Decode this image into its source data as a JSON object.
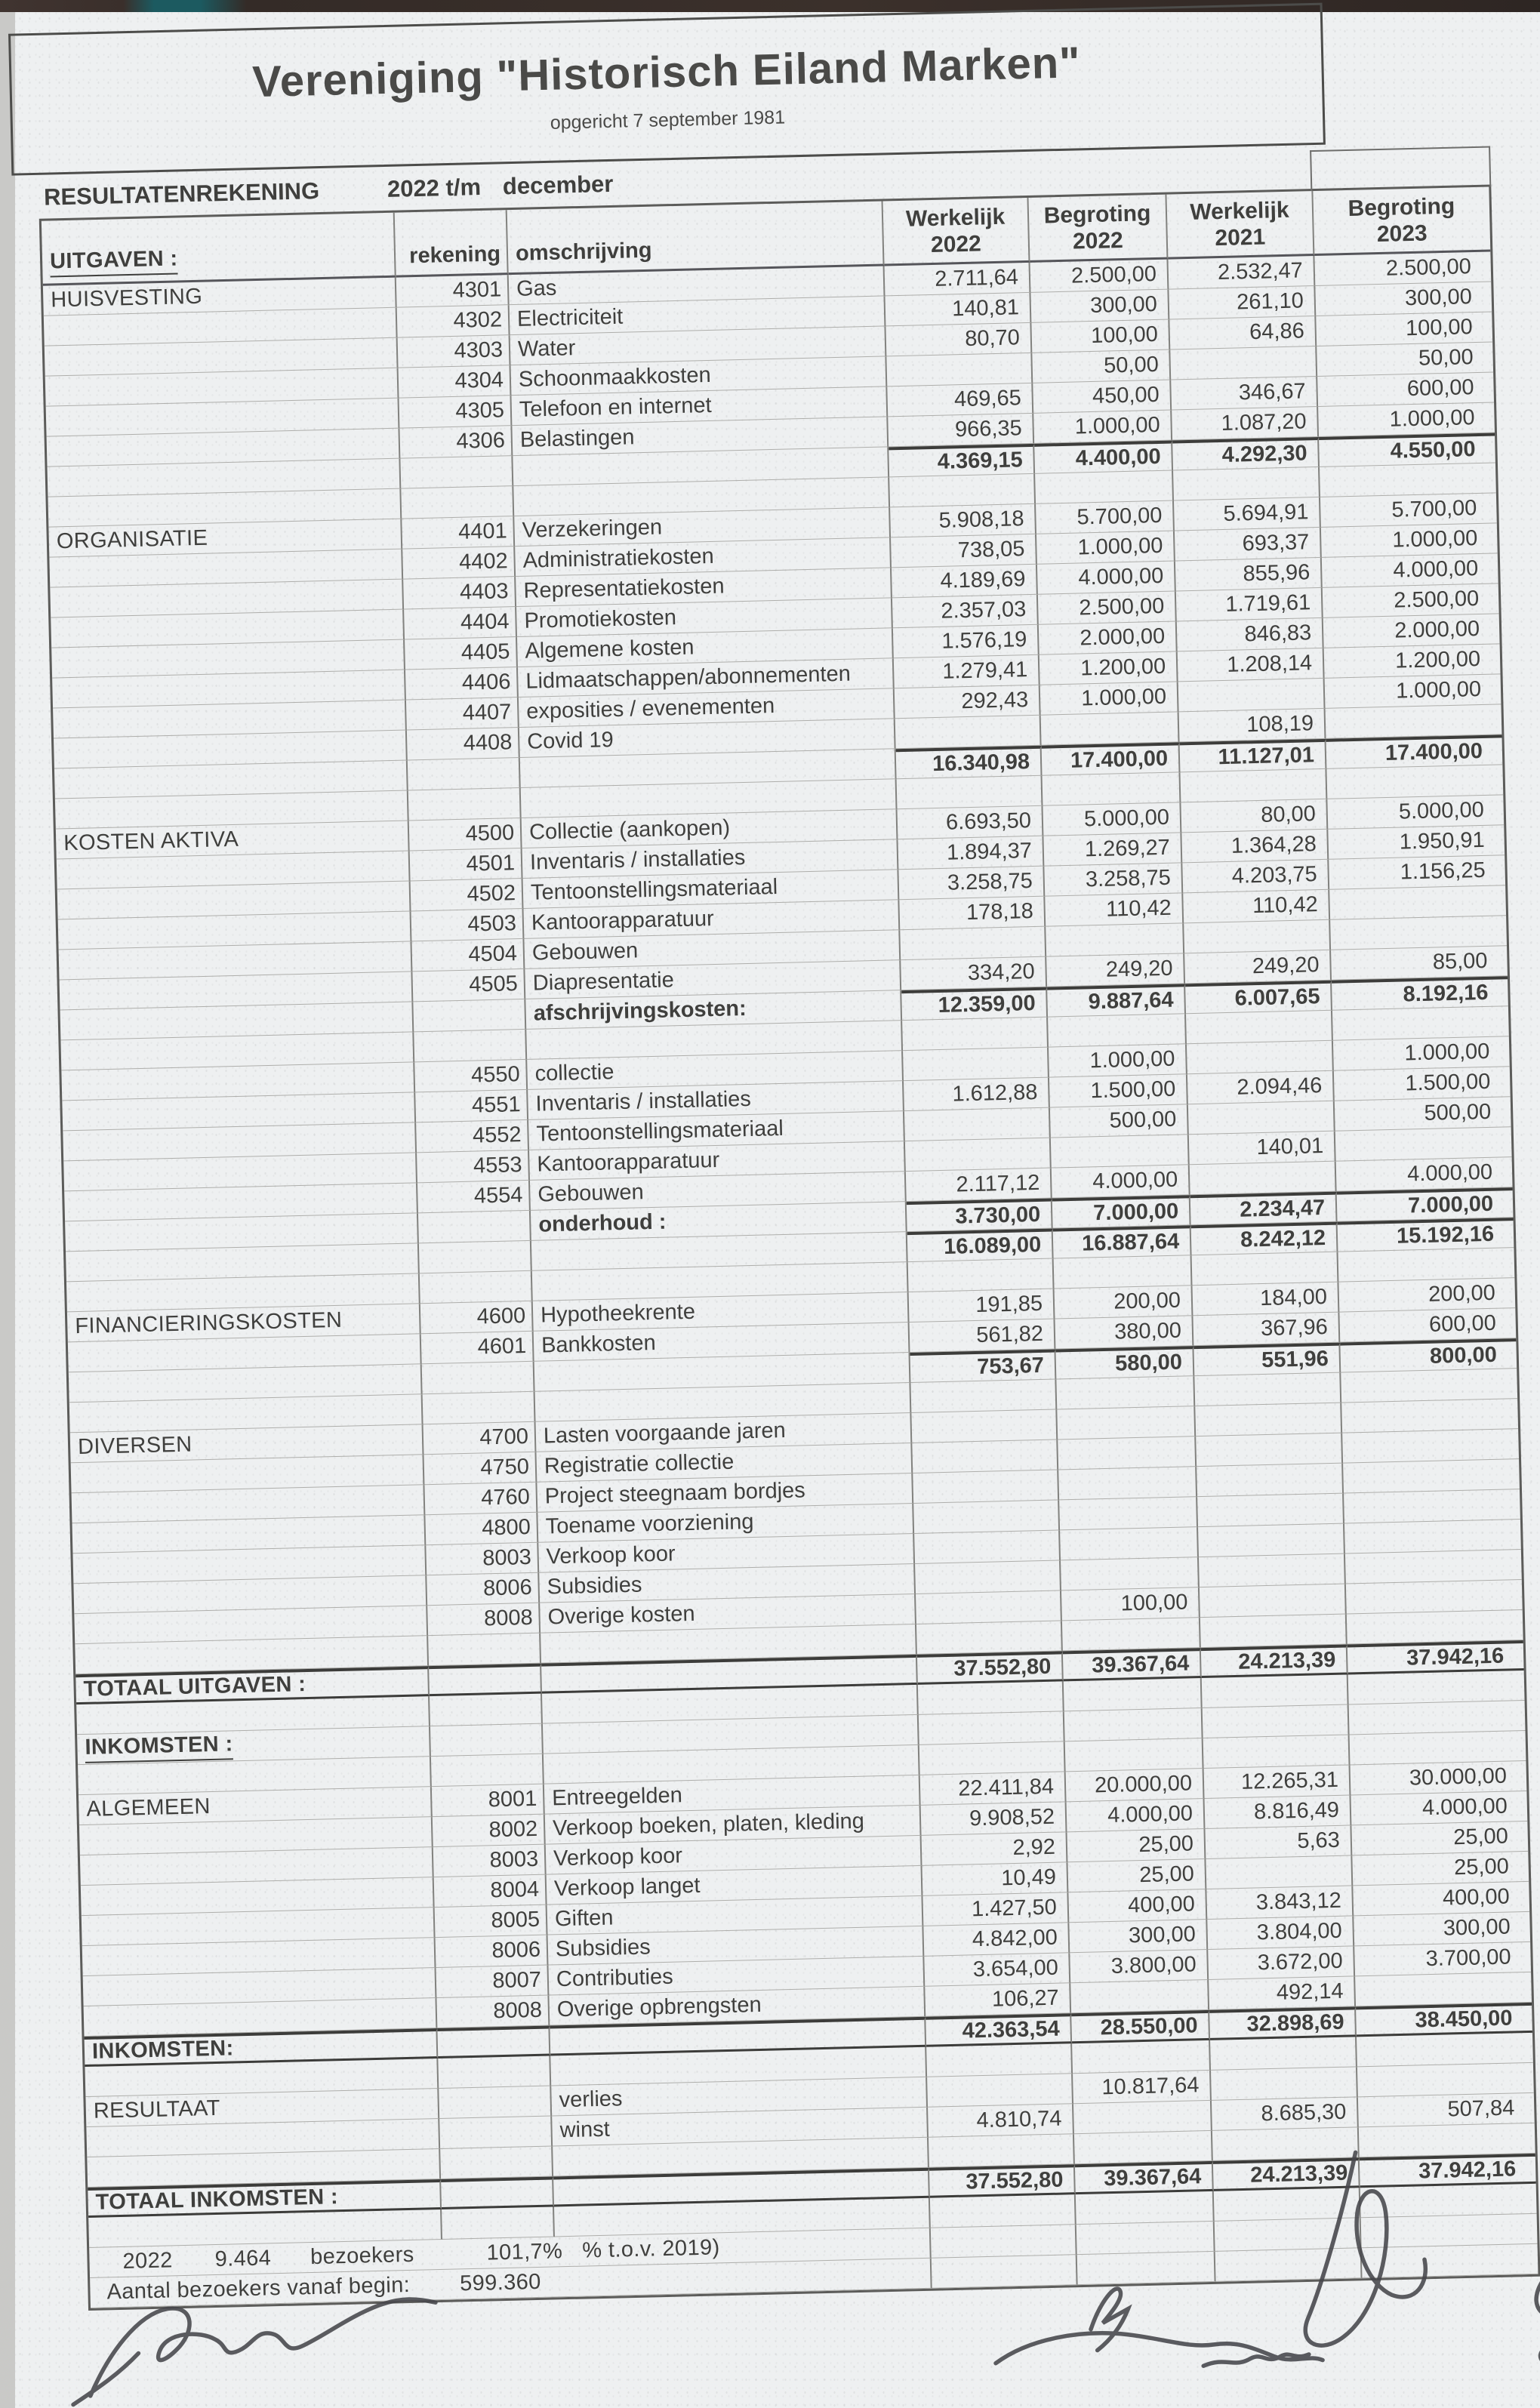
{
  "title_block": {
    "title": "Vereniging \"Historisch Eiland Marken\"",
    "subtitle": "opgericht 7 september 1981"
  },
  "report_header": {
    "label": "RESULTATENREKENING",
    "period": "2022 t/m",
    "month": "december"
  },
  "table": {
    "corner_label": "UITGAVEN :",
    "col_headers_left": {
      "rekening": "rekening",
      "omschrijving": "omschrijving"
    },
    "value_columns": [
      {
        "l1": "Werkelijk",
        "l2": "2022"
      },
      {
        "l1": "Begroting",
        "l2": "2022"
      },
      {
        "l1": "Werkelijk",
        "l2": "2021"
      },
      {
        "l1": "Begroting",
        "l2": "2023"
      }
    ],
    "rows": [
      {
        "t": "d",
        "cat": "HUISVESTING",
        "rek": "4301",
        "oms": "Gas",
        "v": [
          "2.711,64",
          "2.500,00",
          "2.532,47",
          "2.500,00"
        ]
      },
      {
        "t": "d",
        "rek": "4302",
        "oms": "Electriciteit",
        "v": [
          "140,81",
          "300,00",
          "261,10",
          "300,00"
        ]
      },
      {
        "t": "d",
        "rek": "4303",
        "oms": "Water",
        "v": [
          "80,70",
          "100,00",
          "64,86",
          "100,00"
        ]
      },
      {
        "t": "d",
        "rek": "4304",
        "oms": "Schoonmaakkosten",
        "v": [
          "",
          "50,00",
          "",
          "50,00"
        ]
      },
      {
        "t": "d",
        "rek": "4305",
        "oms": "Telefoon en internet",
        "v": [
          "469,65",
          "450,00",
          "346,67",
          "600,00"
        ]
      },
      {
        "t": "d",
        "rek": "4306",
        "oms": "Belastingen",
        "v": [
          "966,35",
          "1.000,00",
          "1.087,20",
          "1.000,00"
        ]
      },
      {
        "t": "s",
        "v": [
          "4.369,15",
          "4.400,00",
          "4.292,30",
          "4.550,00"
        ]
      },
      {
        "t": "b"
      },
      {
        "t": "d",
        "cat": "ORGANISATIE",
        "rek": "4401",
        "oms": "Verzekeringen",
        "v": [
          "5.908,18",
          "5.700,00",
          "5.694,91",
          "5.700,00"
        ]
      },
      {
        "t": "d",
        "rek": "4402",
        "oms": "Administratiekosten",
        "v": [
          "738,05",
          "1.000,00",
          "693,37",
          "1.000,00"
        ]
      },
      {
        "t": "d",
        "rek": "4403",
        "oms": "Representatiekosten",
        "v": [
          "4.189,69",
          "4.000,00",
          "855,96",
          "4.000,00"
        ]
      },
      {
        "t": "d",
        "rek": "4404",
        "oms": "Promotiekosten",
        "v": [
          "2.357,03",
          "2.500,00",
          "1.719,61",
          "2.500,00"
        ]
      },
      {
        "t": "d",
        "rek": "4405",
        "oms": "Algemene kosten",
        "v": [
          "1.576,19",
          "2.000,00",
          "846,83",
          "2.000,00"
        ]
      },
      {
        "t": "d",
        "rek": "4406",
        "oms": "Lidmaatschappen/abonnementen",
        "v": [
          "1.279,41",
          "1.200,00",
          "1.208,14",
          "1.200,00"
        ]
      },
      {
        "t": "d",
        "rek": "4407",
        "oms": "exposities / evenementen",
        "v": [
          "292,43",
          "1.000,00",
          "",
          "1.000,00"
        ]
      },
      {
        "t": "d",
        "rek": "4408",
        "oms": "Covid 19",
        "v": [
          "",
          "",
          "108,19",
          ""
        ]
      },
      {
        "t": "s",
        "v": [
          "16.340,98",
          "17.400,00",
          "11.127,01",
          "17.400,00"
        ]
      },
      {
        "t": "b"
      },
      {
        "t": "d",
        "cat": "KOSTEN AKTIVA",
        "rek": "4500",
        "oms": "Collectie (aankopen)",
        "v": [
          "6.693,50",
          "5.000,00",
          "80,00",
          "5.000,00"
        ]
      },
      {
        "t": "d",
        "rek": "4501",
        "oms": "Inventaris / installaties",
        "v": [
          "1.894,37",
          "1.269,27",
          "1.364,28",
          "1.950,91"
        ]
      },
      {
        "t": "d",
        "rek": "4502",
        "oms": "Tentoonstellingsmateriaal",
        "v": [
          "3.258,75",
          "3.258,75",
          "4.203,75",
          "1.156,25"
        ]
      },
      {
        "t": "d",
        "rek": "4503",
        "oms": "Kantoorapparatuur",
        "v": [
          "178,18",
          "110,42",
          "110,42",
          ""
        ]
      },
      {
        "t": "d",
        "rek": "4504",
        "oms": "Gebouwen",
        "v": [
          "",
          "",
          "",
          ""
        ]
      },
      {
        "t": "d",
        "rek": "4505",
        "oms": "Diapresentatie",
        "v": [
          "334,20",
          "249,20",
          "249,20",
          "85,00"
        ]
      },
      {
        "t": "s",
        "oms": "afschrijvingskosten:",
        "v": [
          "12.359,00",
          "9.887,64",
          "6.007,65",
          "8.192,16"
        ]
      },
      {
        "t": "b"
      },
      {
        "t": "d",
        "rek": "4550",
        "oms": "collectie",
        "v": [
          "",
          "1.000,00",
          "",
          "1.000,00"
        ]
      },
      {
        "t": "d",
        "rek": "4551",
        "oms": "Inventaris / installaties",
        "v": [
          "1.612,88",
          "1.500,00",
          "2.094,46",
          "1.500,00"
        ]
      },
      {
        "t": "d",
        "rek": "4552",
        "oms": "Tentoonstellingsmateriaal",
        "v": [
          "",
          "500,00",
          "",
          "500,00"
        ]
      },
      {
        "t": "d",
        "rek": "4553",
        "oms": "Kantoorapparatuur",
        "v": [
          "",
          "",
          "140,01",
          ""
        ]
      },
      {
        "t": "d",
        "rek": "4554",
        "oms": "Gebouwen",
        "v": [
          "2.117,12",
          "4.000,00",
          "",
          "4.000,00"
        ]
      },
      {
        "t": "s",
        "oms": "onderhoud :",
        "v": [
          "3.730,00",
          "7.000,00",
          "2.234,47",
          "7.000,00"
        ]
      },
      {
        "t": "s",
        "v": [
          "16.089,00",
          "16.887,64",
          "8.242,12",
          "15.192,16"
        ]
      },
      {
        "t": "b"
      },
      {
        "t": "d",
        "cat": "FINANCIERINGSKOSTEN",
        "rek": "4600",
        "oms": "Hypotheekrente",
        "v": [
          "191,85",
          "200,00",
          "184,00",
          "200,00"
        ]
      },
      {
        "t": "d",
        "rek": "4601",
        "oms": "Bankkosten",
        "v": [
          "561,82",
          "380,00",
          "367,96",
          "600,00"
        ]
      },
      {
        "t": "s",
        "v": [
          "753,67",
          "580,00",
          "551,96",
          "800,00"
        ]
      },
      {
        "t": "b"
      },
      {
        "t": "d",
        "cat": "DIVERSEN",
        "rek": "4700",
        "oms": "Lasten voorgaande jaren",
        "v": [
          "",
          "",
          "",
          ""
        ]
      },
      {
        "t": "d",
        "rek": "4750",
        "oms": "Registratie collectie",
        "v": [
          "",
          "",
          "",
          ""
        ]
      },
      {
        "t": "d",
        "rek": "4760",
        "oms": "Project steegnaam bordjes",
        "v": [
          "",
          "",
          "",
          ""
        ]
      },
      {
        "t": "d",
        "rek": "4800",
        "oms": "Toename voorziening",
        "v": [
          "",
          "",
          "",
          ""
        ]
      },
      {
        "t": "d",
        "rek": "8003",
        "oms": "Verkoop koor",
        "v": [
          "",
          "",
          "",
          ""
        ]
      },
      {
        "t": "d",
        "rek": "8006",
        "oms": "Subsidies",
        "v": [
          "",
          "",
          "",
          ""
        ]
      },
      {
        "t": "d",
        "rek": "8008",
        "oms": "Overige kosten",
        "v": [
          "",
          "100,00",
          "",
          ""
        ]
      },
      {
        "t": "b"
      },
      {
        "t": "T",
        "cat": "TOTAAL UITGAVEN :",
        "v": [
          "37.552,80",
          "39.367,64",
          "24.213,39",
          "37.942,16"
        ]
      },
      {
        "t": "b"
      },
      {
        "t": "L",
        "cat": "INKOMSTEN :"
      },
      {
        "t": "b"
      },
      {
        "t": "d",
        "cat": "ALGEMEEN",
        "rek": "8001",
        "oms": "Entreegelden",
        "v": [
          "22.411,84",
          "20.000,00",
          "12.265,31",
          "30.000,00"
        ]
      },
      {
        "t": "d",
        "rek": "8002",
        "oms": "Verkoop boeken, platen, kleding",
        "v": [
          "9.908,52",
          "4.000,00",
          "8.816,49",
          "4.000,00"
        ]
      },
      {
        "t": "d",
        "rek": "8003",
        "oms": "Verkoop koor",
        "v": [
          "2,92",
          "25,00",
          "5,63",
          "25,00"
        ]
      },
      {
        "t": "d",
        "rek": "8004",
        "oms": "Verkoop langet",
        "v": [
          "10,49",
          "25,00",
          "",
          "25,00"
        ]
      },
      {
        "t": "d",
        "rek": "8005",
        "oms": "Giften",
        "v": [
          "1.427,50",
          "400,00",
          "3.843,12",
          "400,00"
        ]
      },
      {
        "t": "d",
        "rek": "8006",
        "oms": "Subsidies",
        "v": [
          "4.842,00",
          "300,00",
          "3.804,00",
          "300,00"
        ]
      },
      {
        "t": "d",
        "rek": "8007",
        "oms": "Contributies",
        "v": [
          "3.654,00",
          "3.800,00",
          "3.672,00",
          "3.700,00"
        ]
      },
      {
        "t": "d",
        "rek": "8008",
        "oms": "Overige opbrengsten",
        "v": [
          "106,27",
          "",
          "492,14",
          ""
        ]
      },
      {
        "t": "T",
        "cat": "INKOMSTEN:",
        "v": [
          "42.363,54",
          "28.550,00",
          "32.898,69",
          "38.450,00"
        ]
      },
      {
        "t": "b"
      },
      {
        "t": "d",
        "cat": "RESULTAAT",
        "oms": "verlies",
        "v": [
          "",
          "10.817,64",
          "",
          ""
        ]
      },
      {
        "t": "d",
        "oms": "winst",
        "v": [
          "4.810,74",
          "",
          "8.685,30",
          "507,84"
        ]
      },
      {
        "t": "b"
      },
      {
        "t": "T",
        "cat": "TOTAAL INKOMSTEN :",
        "v": [
          "37.552,80",
          "39.367,64",
          "24.213,39",
          "37.942,16"
        ]
      },
      {
        "t": "b"
      },
      {
        "t": "f1"
      },
      {
        "t": "f2"
      }
    ]
  },
  "footer": {
    "line1": [
      "2022",
      "9.464",
      "bezoekers",
      "101,7%",
      "% t.o.v. 2019)"
    ],
    "line2_label": "Aantal bezoekers vanaf begin:",
    "line2_value": "599.360"
  },
  "colors": {
    "paper": "#eef0f1",
    "ink": "#3f3f3d",
    "grid_line": "#82827f",
    "thick_line": "#3c3c3a"
  }
}
